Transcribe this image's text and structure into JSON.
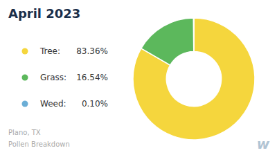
{
  "chart_data": {
    "type": "pie",
    "title": "April 2023",
    "categories": [
      "Tree:",
      "Grass:",
      "Weed:"
    ],
    "values": [
      83.36,
      16.54,
      0.1
    ],
    "value_labels": [
      "83.36%",
      "16.54%",
      "0.10%"
    ],
    "colors": [
      "#f5d63d",
      "#5cb85c",
      "#6baed6"
    ],
    "legend": "left",
    "annotations": [
      "Plano, TX",
      "Pollen Breakdown",
      "w"
    ]
  }
}
